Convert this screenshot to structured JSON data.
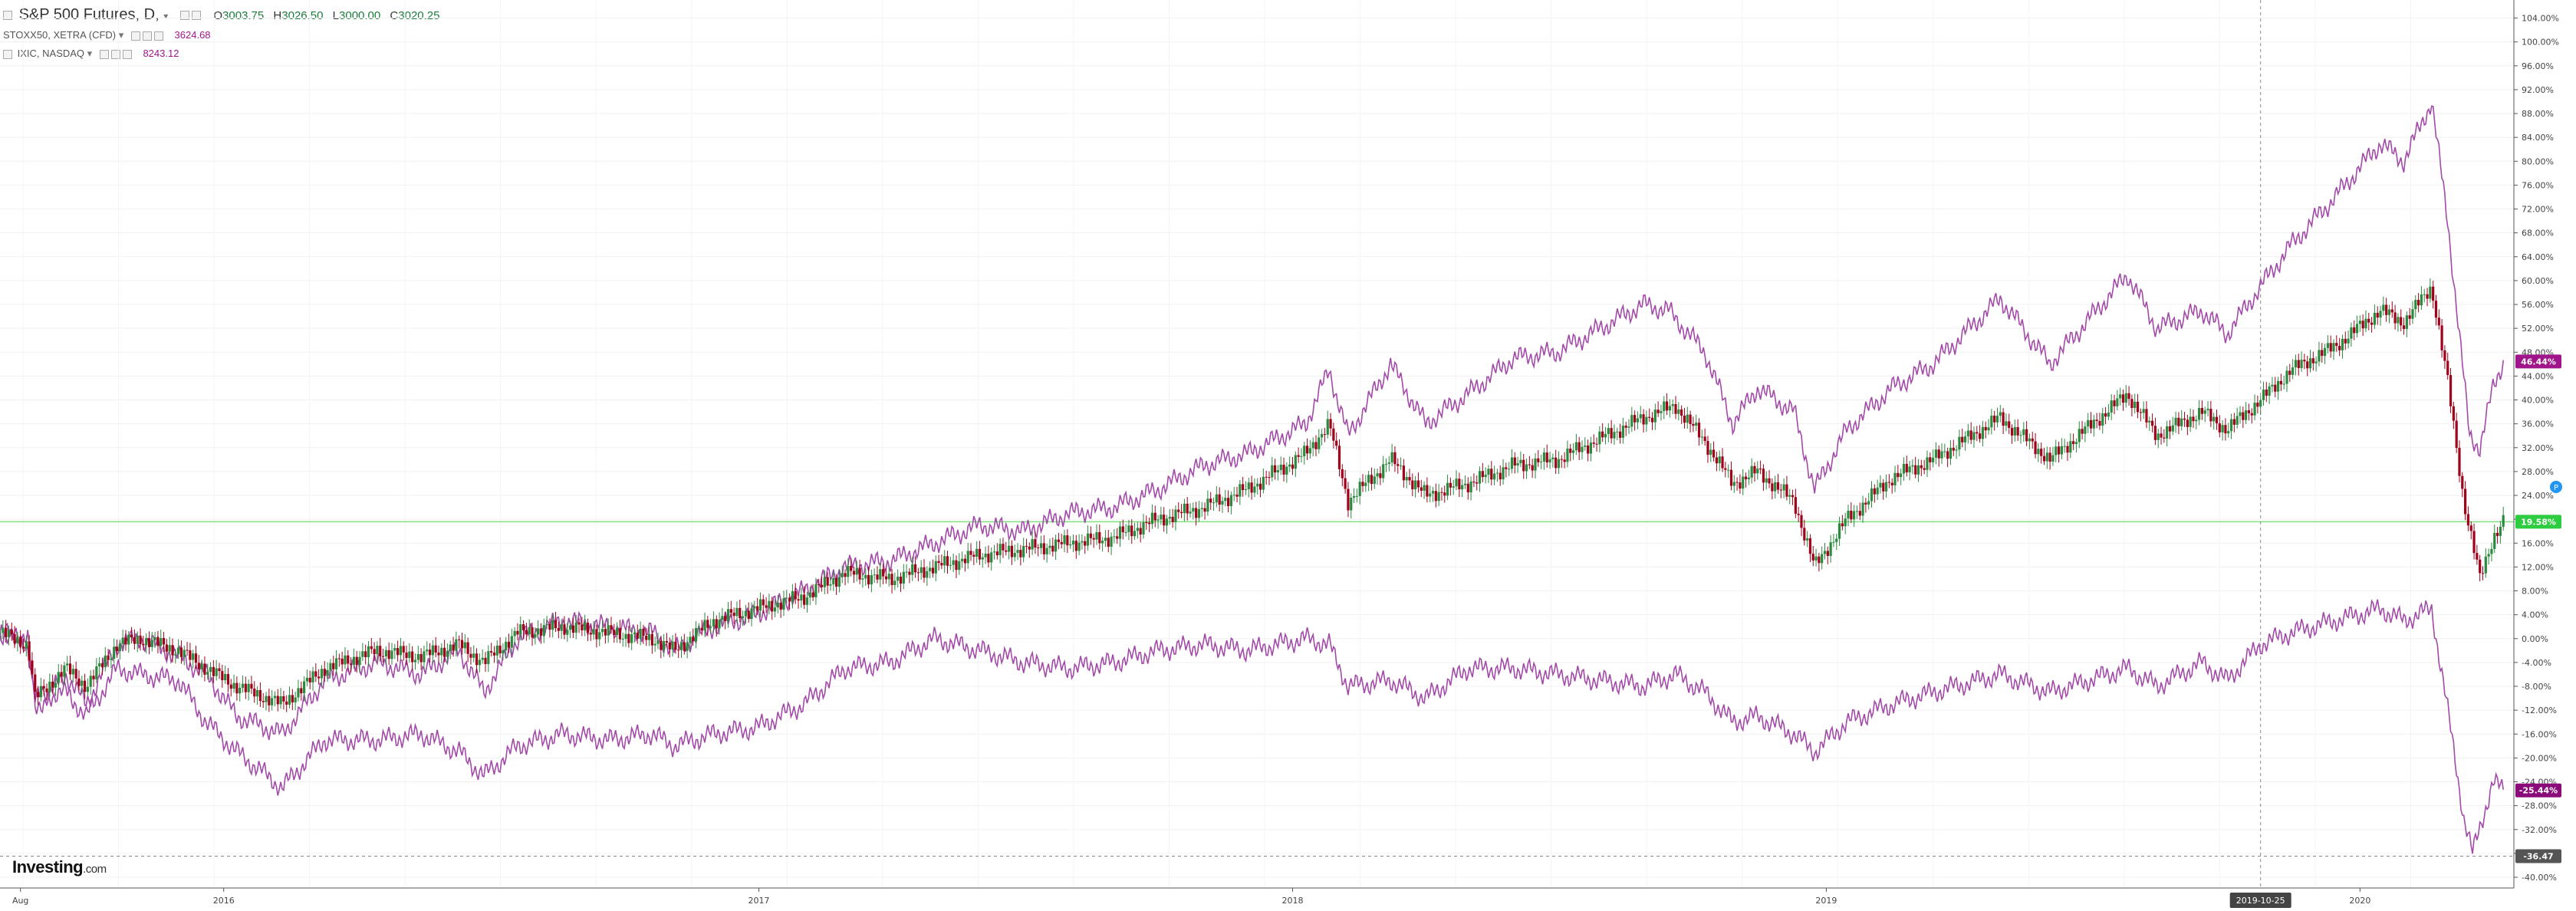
{
  "header": {
    "symbol_title": "S&P 500 Futures, D,",
    "ohlc": [
      {
        "key": "O",
        "value": "3003.75"
      },
      {
        "key": "H",
        "value": "3026.50"
      },
      {
        "key": "L",
        "value": "3000.00"
      },
      {
        "key": "C",
        "value": "3020.25"
      }
    ],
    "overlays": [
      {
        "label": "STOXX50, XETRA (CFD)",
        "value": "3624.68"
      },
      {
        "label": "IXIC, NASDAQ",
        "value": "8243.12"
      }
    ]
  },
  "logo": {
    "brand": "Investing",
    "suffix": ".com"
  },
  "colors": {
    "line": "#a24aa8",
    "up": "#2a8a3e",
    "down": "#a0001a",
    "baseline": "#7fe07f",
    "ixic_badge": "#a0158a",
    "spx_badge": "#2ecc40",
    "stoxx_badge": "#8a0a7a",
    "low_badge": "#555555",
    "date_badge": "#444444"
  },
  "badges": {
    "ixic": "46.44%",
    "spx": "19.58%",
    "stoxx": "-25.44%",
    "low": "-36.47",
    "date": "2019-10-25"
  },
  "chart_data": {
    "type": "line",
    "title": "S&P 500 Futures, D,",
    "xlabel": "",
    "ylabel": "",
    "y_unit": "%",
    "ylim": [
      -40,
      106
    ],
    "yticks": [
      104,
      100,
      96,
      92,
      88,
      84,
      80,
      76,
      72,
      68,
      64,
      60,
      56,
      52,
      48,
      44,
      40,
      36,
      32,
      28,
      24,
      20,
      16,
      12,
      8,
      4,
      0,
      -4,
      -8,
      -12,
      -16,
      -20,
      -24,
      -28,
      -32,
      -36,
      -40
    ],
    "xlim": [
      "2015-08-01",
      "2020-04-10"
    ],
    "x_tick_labels": [
      {
        "date": "2015-08-15",
        "label": "Aug"
      },
      {
        "date": "2016-01-01",
        "label": "2016"
      },
      {
        "date": "2017-01-01",
        "label": "2017"
      },
      {
        "date": "2018-01-01",
        "label": "2018"
      },
      {
        "date": "2019-01-01",
        "label": "2019"
      },
      {
        "date": "2020-01-01",
        "label": "2020"
      }
    ],
    "crosshair": {
      "date": "2019-10-25",
      "value": -36.47
    },
    "baseline_value": 19.58,
    "grid": true,
    "series": [
      {
        "name": "IXIC, NASDAQ",
        "style": "line",
        "last_value": 46.44,
        "points": [
          [
            "2015-08-01",
            1
          ],
          [
            "2015-08-20",
            0
          ],
          [
            "2015-08-25",
            -12
          ],
          [
            "2015-09-15",
            -6
          ],
          [
            "2015-09-29",
            -11
          ],
          [
            "2015-10-20",
            -1
          ],
          [
            "2015-11-05",
            0
          ],
          [
            "2015-12-01",
            -3
          ],
          [
            "2015-12-20",
            -6
          ],
          [
            "2016-01-10",
            -13
          ],
          [
            "2016-02-10",
            -16
          ],
          [
            "2016-03-10",
            -7
          ],
          [
            "2016-04-15",
            -4
          ],
          [
            "2016-05-15",
            -6
          ],
          [
            "2016-06-10",
            -2
          ],
          [
            "2016-06-27",
            -9
          ],
          [
            "2016-07-20",
            0
          ],
          [
            "2016-08-20",
            3
          ],
          [
            "2016-09-20",
            2
          ],
          [
            "2016-10-20",
            1
          ],
          [
            "2016-11-04",
            -2
          ],
          [
            "2016-12-01",
            2
          ],
          [
            "2016-12-30",
            4
          ],
          [
            "2017-02-01",
            8
          ],
          [
            "2017-03-01",
            12
          ],
          [
            "2017-04-01",
            13
          ],
          [
            "2017-05-01",
            16
          ],
          [
            "2017-06-01",
            19
          ],
          [
            "2017-07-01",
            18
          ],
          [
            "2017-08-01",
            21
          ],
          [
            "2017-09-01",
            22
          ],
          [
            "2017-10-01",
            25
          ],
          [
            "2017-11-01",
            29
          ],
          [
            "2017-12-01",
            31
          ],
          [
            "2018-01-10",
            36
          ],
          [
            "2018-01-26",
            45
          ],
          [
            "2018-02-08",
            34
          ],
          [
            "2018-03-09",
            46
          ],
          [
            "2018-04-02",
            36
          ],
          [
            "2018-05-01",
            41
          ],
          [
            "2018-06-01",
            47
          ],
          [
            "2018-07-01",
            48
          ],
          [
            "2018-08-29",
            56
          ],
          [
            "2018-09-15",
            55
          ],
          [
            "2018-10-10",
            48
          ],
          [
            "2018-10-29",
            36
          ],
          [
            "2018-11-15",
            42
          ],
          [
            "2018-12-10",
            38
          ],
          [
            "2018-12-24",
            25
          ],
          [
            "2019-01-15",
            35
          ],
          [
            "2019-02-15",
            42
          ],
          [
            "2019-03-15",
            46
          ],
          [
            "2019-04-30",
            57
          ],
          [
            "2019-06-03",
            46
          ],
          [
            "2019-07-26",
            61
          ],
          [
            "2019-08-15",
            52
          ],
          [
            "2019-09-15",
            55
          ],
          [
            "2019-10-02",
            51
          ],
          [
            "2019-10-25",
            59
          ],
          [
            "2019-11-15",
            66
          ],
          [
            "2019-12-15",
            74
          ],
          [
            "2020-01-15",
            83
          ],
          [
            "2020-01-31",
            80
          ],
          [
            "2020-02-19",
            90
          ],
          [
            "2020-03-01",
            70
          ],
          [
            "2020-03-16",
            34
          ],
          [
            "2020-03-23",
            32
          ],
          [
            "2020-04-01",
            42
          ],
          [
            "2020-04-08",
            46.44
          ]
        ]
      },
      {
        "name": "S&P 500 Futures",
        "style": "candle",
        "last_value": 19.58,
        "points": [
          [
            "2015-08-01",
            1
          ],
          [
            "2015-08-20",
            -1
          ],
          [
            "2015-08-25",
            -10
          ],
          [
            "2015-09-15",
            -5
          ],
          [
            "2015-09-29",
            -8
          ],
          [
            "2015-10-20",
            -1
          ],
          [
            "2015-11-05",
            0
          ],
          [
            "2015-12-01",
            -2
          ],
          [
            "2015-12-20",
            -5
          ],
          [
            "2016-01-10",
            -8
          ],
          [
            "2016-02-10",
            -11
          ],
          [
            "2016-03-10",
            -5
          ],
          [
            "2016-04-15",
            -2
          ],
          [
            "2016-05-15",
            -3
          ],
          [
            "2016-06-10",
            -1
          ],
          [
            "2016-06-27",
            -4
          ],
          [
            "2016-07-20",
            1
          ],
          [
            "2016-08-20",
            2
          ],
          [
            "2016-09-20",
            1
          ],
          [
            "2016-10-20",
            0
          ],
          [
            "2016-11-04",
            -2
          ],
          [
            "2016-12-01",
            3
          ],
          [
            "2016-12-30",
            5
          ],
          [
            "2017-02-01",
            7
          ],
          [
            "2017-03-01",
            11
          ],
          [
            "2017-04-01",
            10
          ],
          [
            "2017-05-01",
            12
          ],
          [
            "2017-06-01",
            14
          ],
          [
            "2017-07-01",
            15
          ],
          [
            "2017-08-01",
            16
          ],
          [
            "2017-09-01",
            17
          ],
          [
            "2017-10-01",
            20
          ],
          [
            "2017-11-01",
            22
          ],
          [
            "2017-12-01",
            25
          ],
          [
            "2018-01-10",
            31
          ],
          [
            "2018-01-26",
            36
          ],
          [
            "2018-02-08",
            23
          ],
          [
            "2018-03-09",
            30
          ],
          [
            "2018-04-02",
            24
          ],
          [
            "2018-05-01",
            26
          ],
          [
            "2018-06-01",
            29
          ],
          [
            "2018-07-01",
            30
          ],
          [
            "2018-08-29",
            37
          ],
          [
            "2018-09-20",
            39
          ],
          [
            "2018-10-10",
            33
          ],
          [
            "2018-10-29",
            26
          ],
          [
            "2018-11-15",
            28
          ],
          [
            "2018-12-10",
            23
          ],
          [
            "2018-12-24",
            12
          ],
          [
            "2019-01-15",
            20
          ],
          [
            "2019-02-15",
            27
          ],
          [
            "2019-03-15",
            30
          ],
          [
            "2019-04-30",
            37
          ],
          [
            "2019-06-03",
            30
          ],
          [
            "2019-07-26",
            41
          ],
          [
            "2019-08-15",
            34
          ],
          [
            "2019-09-15",
            38
          ],
          [
            "2019-10-02",
            35
          ],
          [
            "2019-10-25",
            40
          ],
          [
            "2019-11-15",
            45
          ],
          [
            "2019-12-15",
            49
          ],
          [
            "2020-01-15",
            55
          ],
          [
            "2020-01-31",
            53
          ],
          [
            "2020-02-19",
            59
          ],
          [
            "2020-03-01",
            43
          ],
          [
            "2020-03-12",
            23
          ],
          [
            "2020-03-23",
            10
          ],
          [
            "2020-04-01",
            17
          ],
          [
            "2020-04-08",
            19.58
          ]
        ]
      },
      {
        "name": "STOXX50, XETRA (CFD)",
        "style": "line",
        "last_value": -25.44,
        "points": [
          [
            "2015-08-01",
            1
          ],
          [
            "2015-08-20",
            -1
          ],
          [
            "2015-08-25",
            -10
          ],
          [
            "2015-09-15",
            -9
          ],
          [
            "2015-09-29",
            -13
          ],
          [
            "2015-10-20",
            -5
          ],
          [
            "2015-11-05",
            -6
          ],
          [
            "2015-12-01",
            -7
          ],
          [
            "2015-12-20",
            -14
          ],
          [
            "2016-01-10",
            -19
          ],
          [
            "2016-02-10",
            -25
          ],
          [
            "2016-03-10",
            -17
          ],
          [
            "2016-04-15",
            -17
          ],
          [
            "2016-05-15",
            -16
          ],
          [
            "2016-06-10",
            -19
          ],
          [
            "2016-06-27",
            -23
          ],
          [
            "2016-07-20",
            -18
          ],
          [
            "2016-08-20",
            -16
          ],
          [
            "2016-09-20",
            -17
          ],
          [
            "2016-10-20",
            -16
          ],
          [
            "2016-11-04",
            -18
          ],
          [
            "2016-12-01",
            -16
          ],
          [
            "2016-12-30",
            -15
          ],
          [
            "2017-02-01",
            -11
          ],
          [
            "2017-03-01",
            -5
          ],
          [
            "2017-04-01",
            -4
          ],
          [
            "2017-05-01",
            0
          ],
          [
            "2017-06-01",
            -2
          ],
          [
            "2017-07-01",
            -4
          ],
          [
            "2017-08-01",
            -5
          ],
          [
            "2017-09-01",
            -4
          ],
          [
            "2017-10-01",
            -2
          ],
          [
            "2017-11-01",
            -1
          ],
          [
            "2017-12-01",
            -2
          ],
          [
            "2018-01-10",
            0
          ],
          [
            "2018-01-26",
            -1
          ],
          [
            "2018-02-08",
            -8
          ],
          [
            "2018-03-09",
            -7
          ],
          [
            "2018-04-02",
            -10
          ],
          [
            "2018-05-01",
            -5
          ],
          [
            "2018-06-01",
            -5
          ],
          [
            "2018-07-01",
            -6
          ],
          [
            "2018-08-29",
            -8
          ],
          [
            "2018-09-20",
            -6
          ],
          [
            "2018-10-10",
            -9
          ],
          [
            "2018-10-29",
            -14
          ],
          [
            "2018-11-15",
            -13
          ],
          [
            "2018-12-10",
            -16
          ],
          [
            "2018-12-24",
            -19
          ],
          [
            "2019-01-15",
            -14
          ],
          [
            "2019-02-15",
            -11
          ],
          [
            "2019-03-15",
            -9
          ],
          [
            "2019-04-30",
            -6
          ],
          [
            "2019-06-03",
            -9
          ],
          [
            "2019-07-26",
            -5
          ],
          [
            "2019-08-15",
            -8
          ],
          [
            "2019-09-15",
            -4
          ],
          [
            "2019-10-02",
            -7
          ],
          [
            "2019-10-25",
            -1
          ],
          [
            "2019-11-15",
            1
          ],
          [
            "2019-12-15",
            3
          ],
          [
            "2020-01-15",
            5
          ],
          [
            "2020-01-31",
            3
          ],
          [
            "2020-02-19",
            5
          ],
          [
            "2020-03-01",
            -12
          ],
          [
            "2020-03-12",
            -30
          ],
          [
            "2020-03-18",
            -36
          ],
          [
            "2020-04-01",
            -24
          ],
          [
            "2020-04-08",
            -25.44
          ]
        ]
      }
    ]
  }
}
